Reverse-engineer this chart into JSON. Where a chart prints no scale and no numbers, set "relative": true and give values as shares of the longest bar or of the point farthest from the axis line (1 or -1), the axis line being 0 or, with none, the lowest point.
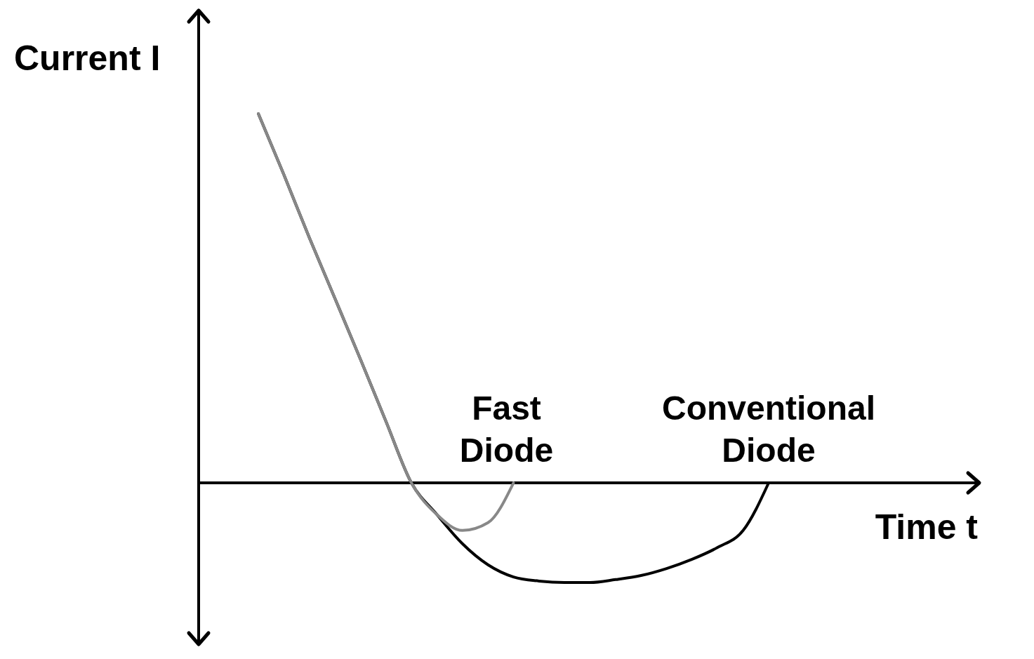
{
  "chart_data": {
    "type": "line",
    "relative": true,
    "xlabel": "Time t",
    "ylabel": "Current I",
    "legend": false,
    "marker": "none",
    "categories": [
      null,
      null,
      null,
      null,
      null,
      null,
      null,
      null,
      null,
      null,
      null,
      null,
      null,
      null,
      null,
      null,
      null,
      null,
      null,
      null,
      null
    ],
    "series": [
      {
        "name": "Conventional Diode",
        "color": "#000000",
        "values": [
          1.0,
          0.835,
          0.664,
          0.5,
          0.335,
          0.167,
          0.0,
          -0.086,
          -0.165,
          -0.222,
          -0.255,
          -0.266,
          -0.27,
          -0.27,
          -0.262,
          -0.251,
          -0.232,
          -0.207,
          -0.175,
          -0.129,
          0.0
        ]
      },
      {
        "name": "Fast Diode",
        "color": "#888888",
        "values": [
          1.0,
          0.835,
          0.664,
          0.5,
          0.335,
          0.167,
          0.0,
          -0.086,
          -0.129,
          -0.108,
          0.0,
          null,
          null,
          null,
          null,
          null,
          null,
          null,
          null,
          null,
          null
        ]
      }
    ]
  }
}
